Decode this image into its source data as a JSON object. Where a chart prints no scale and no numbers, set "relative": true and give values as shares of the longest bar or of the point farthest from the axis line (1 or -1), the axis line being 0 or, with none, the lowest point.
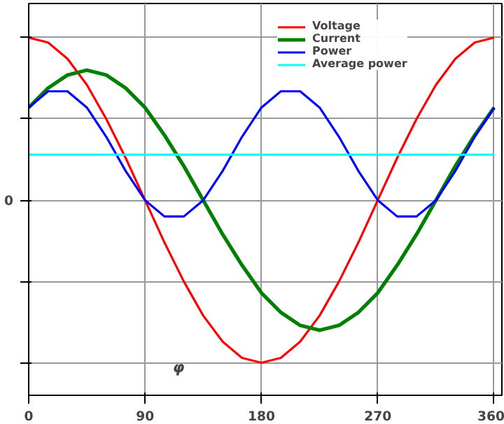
{
  "chart_data": {
    "type": "line",
    "relative": true,
    "x": [
      0,
      15,
      30,
      45,
      60,
      75,
      90,
      105,
      120,
      135,
      150,
      165,
      180,
      195,
      210,
      225,
      240,
      255,
      270,
      285,
      300,
      315,
      330,
      345,
      360
    ],
    "xlim": [
      0,
      366
    ],
    "xticks": [
      0,
      90,
      180,
      270,
      360
    ],
    "grid": true,
    "legend": "top right",
    "series": [
      {
        "name": "Voltage",
        "color": "#ff0000",
        "values": [
          1,
          0.97,
          0.87,
          0.71,
          0.5,
          0.26,
          0,
          -0.26,
          -0.5,
          -0.71,
          -0.87,
          -0.97,
          -1,
          -0.97,
          -0.87,
          -0.71,
          -0.5,
          -0.26,
          0,
          0.26,
          0.5,
          0.71,
          0.87,
          0.97,
          1
        ]
      },
      {
        "name": "Current",
        "color": "#008000",
        "values": [
          0.57,
          0.69,
          0.77,
          0.8,
          0.77,
          0.69,
          0.57,
          0.4,
          0.21,
          0,
          -0.21,
          -0.4,
          -0.57,
          -0.69,
          -0.77,
          -0.8,
          -0.77,
          -0.69,
          -0.57,
          -0.4,
          -0.21,
          0,
          0.21,
          0.4,
          0.57
        ]
      },
      {
        "name": "Power",
        "color": "#0000ff",
        "values": [
          0.57,
          0.67,
          0.67,
          0.57,
          0.39,
          0.18,
          0,
          -0.1,
          -0.1,
          0,
          0.18,
          0.39,
          0.57,
          0.67,
          0.67,
          0.57,
          0.39,
          0.18,
          0,
          -0.1,
          -0.1,
          0,
          0.18,
          0.39,
          0.57
        ]
      },
      {
        "name": "Average power",
        "color": "#00ffff",
        "values": [
          0.28,
          0.28,
          0.28,
          0.28,
          0.28,
          0.28,
          0.28,
          0.28,
          0.28,
          0.28,
          0.28,
          0.28,
          0.28,
          0.28,
          0.28,
          0.28,
          0.28,
          0.28,
          0.28,
          0.28,
          0.28,
          0.28,
          0.28,
          0.28,
          0.28
        ]
      }
    ],
    "annotations": [
      "0",
      "φ"
    ]
  }
}
